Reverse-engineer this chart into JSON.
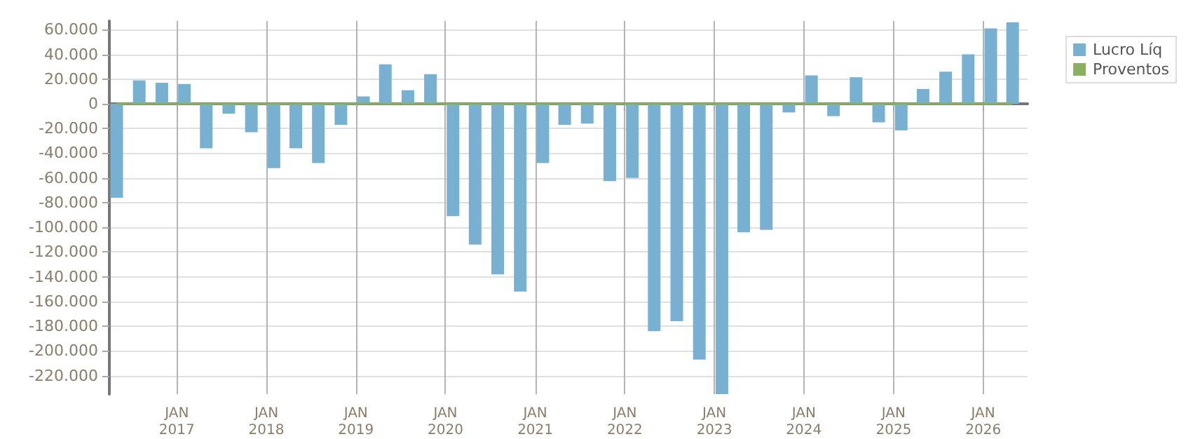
{
  "chart_data": {
    "type": "bar",
    "x": [
      "2016-05",
      "2016-08",
      "2016-11",
      "2017-02",
      "2017-05",
      "2017-08",
      "2017-11",
      "2018-02",
      "2018-05",
      "2018-08",
      "2018-11",
      "2019-02",
      "2019-05",
      "2019-08",
      "2019-11",
      "2020-02",
      "2020-05",
      "2020-08",
      "2020-11",
      "2021-02",
      "2021-05",
      "2021-08",
      "2021-11",
      "2022-02",
      "2022-05",
      "2022-08",
      "2022-11",
      "2023-02",
      "2023-05",
      "2023-08",
      "2023-11",
      "2024-02",
      "2024-05",
      "2024-08",
      "2024-11",
      "2025-02",
      "2025-05",
      "2025-08",
      "2025-11",
      "2026-02",
      "2026-05"
    ],
    "series": [
      {
        "name": "Lucro Líq",
        "color": "#78b0d2",
        "values": [
          -76000,
          19000,
          17000,
          16000,
          -36000,
          -8000,
          -23000,
          -52000,
          -36000,
          -48000,
          -17000,
          6000,
          32000,
          11000,
          24000,
          -91000,
          -114000,
          -138000,
          -152000,
          -48000,
          -17000,
          -16000,
          -62500,
          -60000,
          -184000,
          -176000,
          -207000,
          -235000,
          -104000,
          -102000,
          -7000,
          23000,
          -10000,
          21500,
          -15000,
          -21500,
          12000,
          26000,
          40000,
          61000,
          66000
        ]
      },
      {
        "name": "Proventos",
        "type": "line",
        "color": "#88b060",
        "values": [
          0,
          0,
          0,
          0,
          0,
          0,
          0,
          0,
          0,
          0,
          0,
          0,
          0,
          0,
          0,
          0,
          0,
          0,
          0,
          0,
          0,
          0,
          0,
          0,
          0,
          0,
          0,
          0,
          0,
          0,
          0,
          0,
          0,
          0,
          0,
          0,
          0,
          0,
          0,
          0,
          0
        ]
      }
    ],
    "xlim": [
      "2016-04",
      "2026-07"
    ],
    "xticks": [
      {
        "value": "2017-01",
        "label": "JAN\n2017"
      },
      {
        "value": "2018-01",
        "label": "JAN\n2018"
      },
      {
        "value": "2019-01",
        "label": "JAN\n2019"
      },
      {
        "value": "2020-01",
        "label": "JAN\n2020"
      },
      {
        "value": "2021-01",
        "label": "JAN\n2021"
      },
      {
        "value": "2022-01",
        "label": "JAN\n2022"
      },
      {
        "value": "2023-01",
        "label": "JAN\n2023"
      },
      {
        "value": "2024-01",
        "label": "JAN\n2024"
      },
      {
        "value": "2025-01",
        "label": "JAN\n2025"
      },
      {
        "value": "2026-01",
        "label": "JAN\n2026"
      }
    ],
    "ylim": [
      -235000,
      67000
    ],
    "yticks": [
      {
        "value": 60000,
        "label": "60.000"
      },
      {
        "value": 40000,
        "label": "40.000"
      },
      {
        "value": 20000,
        "label": "20.000"
      },
      0,
      {
        "value": -20000,
        "label": "-20.000"
      },
      {
        "value": -40000,
        "label": "-40.000"
      },
      {
        "value": -60000,
        "label": "-60.000"
      },
      {
        "value": -80000,
        "label": "-80.000"
      },
      {
        "value": -100000,
        "label": "-100.000"
      },
      {
        "value": -120000,
        "label": "-120.000"
      },
      {
        "value": -140000,
        "label": "-140.000"
      },
      {
        "value": -160000,
        "label": "-160.000"
      },
      {
        "value": -180000,
        "label": "-180.000"
      },
      {
        "value": -200000,
        "label": "-200.000"
      },
      {
        "value": -220000,
        "label": "-220.000"
      }
    ],
    "grid": true,
    "legend": "top right",
    "marker": "none"
  }
}
